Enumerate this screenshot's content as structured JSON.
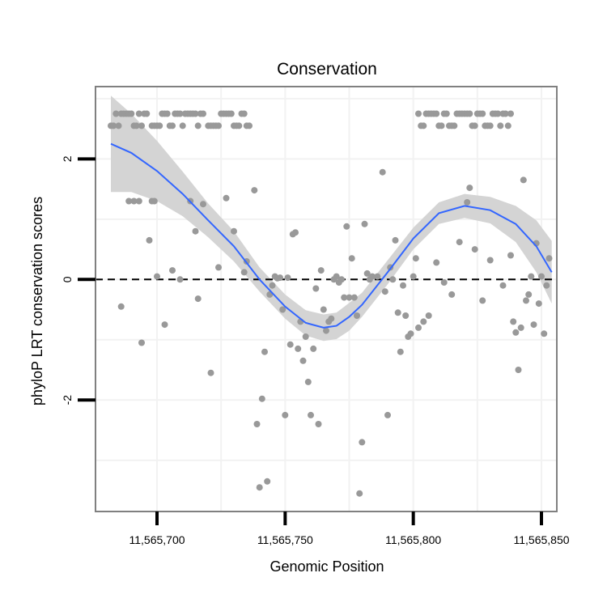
{
  "chart_data": {
    "type": "scatter",
    "title": "Conservation",
    "xlabel": "Genomic Position",
    "ylabel": "phyloP LRT conservation scores",
    "xlim": [
      11565676,
      11565856
    ],
    "ylim": [
      -3.85,
      3.2
    ],
    "x_ticks": [
      11565700,
      11565750,
      11565800,
      11565850
    ],
    "x_tick_labels": [
      "11,565,700",
      "11,565,750",
      "11,565,800",
      "11,565,850"
    ],
    "y_ticks": [
      -2,
      0,
      2
    ],
    "y_tick_labels": [
      "-2",
      "0",
      "2"
    ],
    "grid": true,
    "reference_line": {
      "y": 0,
      "style": "dashed"
    },
    "colors": {
      "points": "#999999",
      "smooth_line": "#3366ff",
      "confidence_band": "#d4d4d4",
      "panel_border": "#808080",
      "grid": "#f2f2f2"
    },
    "points": [
      [
        11565682,
        2.55
      ],
      [
        11565683,
        2.55
      ],
      [
        11565684,
        2.75
      ],
      [
        11565685,
        2.55
      ],
      [
        11565686,
        2.75
      ],
      [
        11565687,
        2.75
      ],
      [
        11565688,
        2.75
      ],
      [
        11565689,
        2.75
      ],
      [
        11565690,
        2.75
      ],
      [
        11565691,
        2.55
      ],
      [
        11565692,
        2.55
      ],
      [
        11565693,
        2.75
      ],
      [
        11565694,
        2.55
      ],
      [
        11565695,
        2.75
      ],
      [
        11565696,
        2.75
      ],
      [
        11565698,
        2.55
      ],
      [
        11565699,
        2.55
      ],
      [
        11565700,
        2.55
      ],
      [
        11565701,
        2.55
      ],
      [
        11565702,
        2.75
      ],
      [
        11565703,
        2.75
      ],
      [
        11565704,
        2.75
      ],
      [
        11565705,
        2.55
      ],
      [
        11565706,
        2.55
      ],
      [
        11565707,
        2.75
      ],
      [
        11565708,
        2.75
      ],
      [
        11565709,
        2.75
      ],
      [
        11565710,
        2.55
      ],
      [
        11565711,
        2.75
      ],
      [
        11565712,
        2.75
      ],
      [
        11565713,
        2.75
      ],
      [
        11565714,
        2.75
      ],
      [
        11565715,
        2.75
      ],
      [
        11565716,
        2.55
      ],
      [
        11565717,
        2.75
      ],
      [
        11565718,
        2.75
      ],
      [
        11565720,
        2.55
      ],
      [
        11565721,
        2.55
      ],
      [
        11565722,
        2.55
      ],
      [
        11565723,
        2.55
      ],
      [
        11565724,
        2.55
      ],
      [
        11565725,
        2.75
      ],
      [
        11565726,
        2.75
      ],
      [
        11565727,
        2.75
      ],
      [
        11565728,
        2.75
      ],
      [
        11565729,
        2.75
      ],
      [
        11565730,
        2.55
      ],
      [
        11565731,
        2.55
      ],
      [
        11565732,
        2.55
      ],
      [
        11565733,
        2.75
      ],
      [
        11565734,
        2.75
      ],
      [
        11565735,
        2.55
      ],
      [
        11565736,
        2.55
      ],
      [
        11565802,
        2.75
      ],
      [
        11565803,
        2.55
      ],
      [
        11565804,
        2.55
      ],
      [
        11565805,
        2.75
      ],
      [
        11565806,
        2.75
      ],
      [
        11565807,
        2.75
      ],
      [
        11565808,
        2.75
      ],
      [
        11565809,
        2.75
      ],
      [
        11565810,
        2.55
      ],
      [
        11565811,
        2.55
      ],
      [
        11565812,
        2.75
      ],
      [
        11565813,
        2.75
      ],
      [
        11565814,
        2.55
      ],
      [
        11565815,
        2.55
      ],
      [
        11565816,
        2.55
      ],
      [
        11565817,
        2.75
      ],
      [
        11565818,
        2.75
      ],
      [
        11565819,
        2.75
      ],
      [
        11565820,
        2.75
      ],
      [
        11565821,
        2.75
      ],
      [
        11565822,
        2.75
      ],
      [
        11565823,
        2.55
      ],
      [
        11565824,
        2.55
      ],
      [
        11565825,
        2.75
      ],
      [
        11565826,
        2.75
      ],
      [
        11565827,
        2.75
      ],
      [
        11565828,
        2.55
      ],
      [
        11565829,
        2.55
      ],
      [
        11565830,
        2.55
      ],
      [
        11565831,
        2.75
      ],
      [
        11565832,
        2.75
      ],
      [
        11565833,
        2.75
      ],
      [
        11565834,
        2.55
      ],
      [
        11565835,
        2.75
      ],
      [
        11565836,
        2.75
      ],
      [
        11565837,
        2.55
      ],
      [
        11565838,
        2.75
      ],
      [
        11565686,
        -0.45
      ],
      [
        11565689,
        1.3
      ],
      [
        11565691,
        1.3
      ],
      [
        11565693,
        1.3
      ],
      [
        11565694,
        -1.05
      ],
      [
        11565697,
        0.65
      ],
      [
        11565698,
        1.3
      ],
      [
        11565699,
        1.3
      ],
      [
        11565700,
        0.05
      ],
      [
        11565703,
        -0.75
      ],
      [
        11565706,
        0.15
      ],
      [
        11565709,
        0.0
      ],
      [
        11565713,
        1.3
      ],
      [
        11565715,
        0.8
      ],
      [
        11565716,
        -0.32
      ],
      [
        11565718,
        1.25
      ],
      [
        11565721,
        -1.55
      ],
      [
        11565724,
        0.2
      ],
      [
        11565727,
        1.35
      ],
      [
        11565730,
        0.8
      ],
      [
        11565734,
        0.12
      ],
      [
        11565735,
        0.3
      ],
      [
        11565738,
        1.48
      ],
      [
        11565739,
        -2.4
      ],
      [
        11565740,
        -3.45
      ],
      [
        11565741,
        -1.98
      ],
      [
        11565742,
        -1.2
      ],
      [
        11565743,
        -3.35
      ],
      [
        11565744,
        -0.25
      ],
      [
        11565745,
        -0.1
      ],
      [
        11565746,
        0.05
      ],
      [
        11565747,
        0.02
      ],
      [
        11565748,
        0.03
      ],
      [
        11565749,
        -0.5
      ],
      [
        11565750,
        -2.25
      ],
      [
        11565751,
        0.03
      ],
      [
        11565752,
        -1.08
      ],
      [
        11565753,
        0.75
      ],
      [
        11565754,
        0.78
      ],
      [
        11565755,
        -1.15
      ],
      [
        11565756,
        -0.7
      ],
      [
        11565757,
        -1.35
      ],
      [
        11565758,
        -0.95
      ],
      [
        11565759,
        -1.7
      ],
      [
        11565760,
        -2.25
      ],
      [
        11565761,
        -1.15
      ],
      [
        11565762,
        -0.15
      ],
      [
        11565763,
        -2.4
      ],
      [
        11565764,
        0.15
      ],
      [
        11565765,
        -0.5
      ],
      [
        11565766,
        -0.85
      ],
      [
        11565767,
        -0.7
      ],
      [
        11565768,
        -0.65
      ],
      [
        11565769,
        0.0
      ],
      [
        11565770,
        0.05
      ],
      [
        11565771,
        -0.05
      ],
      [
        11565772,
        0.0
      ],
      [
        11565773,
        -0.3
      ],
      [
        11565774,
        0.88
      ],
      [
        11565775,
        -0.3
      ],
      [
        11565776,
        0.35
      ],
      [
        11565777,
        -0.3
      ],
      [
        11565778,
        -0.6
      ],
      [
        11565779,
        -3.55
      ],
      [
        11565780,
        -2.7
      ],
      [
        11565781,
        0.92
      ],
      [
        11565782,
        0.1
      ],
      [
        11565783,
        0.0
      ],
      [
        11565784,
        0.05
      ],
      [
        11565786,
        0.05
      ],
      [
        11565788,
        1.78
      ],
      [
        11565789,
        -0.2
      ],
      [
        11565790,
        -2.25
      ],
      [
        11565791,
        0.2
      ],
      [
        11565792,
        0.0
      ],
      [
        11565793,
        0.65
      ],
      [
        11565794,
        -0.55
      ],
      [
        11565795,
        -1.2
      ],
      [
        11565796,
        -0.1
      ],
      [
        11565797,
        -0.6
      ],
      [
        11565798,
        -0.95
      ],
      [
        11565799,
        -0.9
      ],
      [
        11565800,
        0.05
      ],
      [
        11565801,
        0.35
      ],
      [
        11565802,
        -0.8
      ],
      [
        11565804,
        -0.7
      ],
      [
        11565806,
        -0.6
      ],
      [
        11565809,
        0.28
      ],
      [
        11565812,
        -0.05
      ],
      [
        11565815,
        -0.25
      ],
      [
        11565818,
        0.62
      ],
      [
        11565821,
        1.28
      ],
      [
        11565822,
        1.52
      ],
      [
        11565824,
        0.5
      ],
      [
        11565827,
        -0.35
      ],
      [
        11565830,
        0.32
      ],
      [
        11565835,
        -0.1
      ],
      [
        11565838,
        0.4
      ],
      [
        11565839,
        -0.7
      ],
      [
        11565840,
        -0.88
      ],
      [
        11565841,
        -1.5
      ],
      [
        11565842,
        -0.8
      ],
      [
        11565843,
        1.65
      ],
      [
        11565844,
        -0.35
      ],
      [
        11565845,
        -0.25
      ],
      [
        11565846,
        0.05
      ],
      [
        11565847,
        -0.75
      ],
      [
        11565848,
        0.6
      ],
      [
        11565849,
        -0.4
      ],
      [
        11565850,
        0.05
      ],
      [
        11565851,
        -0.9
      ],
      [
        11565852,
        -0.1
      ],
      [
        11565853,
        0.35
      ]
    ],
    "smooth_curve": {
      "x": [
        11565682,
        11565690,
        11565700,
        11565710,
        11565720,
        11565730,
        11565740,
        11565750,
        11565758,
        11565765,
        11565770,
        11565775,
        11565780,
        11565790,
        11565800,
        11565810,
        11565820,
        11565830,
        11565840,
        11565848,
        11565854
      ],
      "y": [
        2.25,
        2.1,
        1.8,
        1.42,
        0.98,
        0.55,
        0.0,
        -0.45,
        -0.72,
        -0.8,
        -0.77,
        -0.62,
        -0.42,
        0.12,
        0.68,
        1.1,
        1.22,
        1.15,
        0.92,
        0.55,
        0.12
      ],
      "band_lower": [
        1.45,
        1.45,
        1.3,
        1.05,
        0.7,
        0.3,
        -0.2,
        -0.65,
        -0.93,
        -1.02,
        -0.99,
        -0.85,
        -0.62,
        -0.08,
        0.5,
        0.92,
        1.02,
        0.93,
        0.62,
        0.12,
        -0.4
      ],
      "band_upper": [
        3.05,
        2.75,
        2.3,
        1.79,
        1.26,
        0.8,
        0.2,
        -0.25,
        -0.51,
        -0.58,
        -0.55,
        -0.39,
        -0.22,
        0.32,
        0.86,
        1.28,
        1.42,
        1.37,
        1.22,
        0.98,
        0.64
      ]
    }
  }
}
